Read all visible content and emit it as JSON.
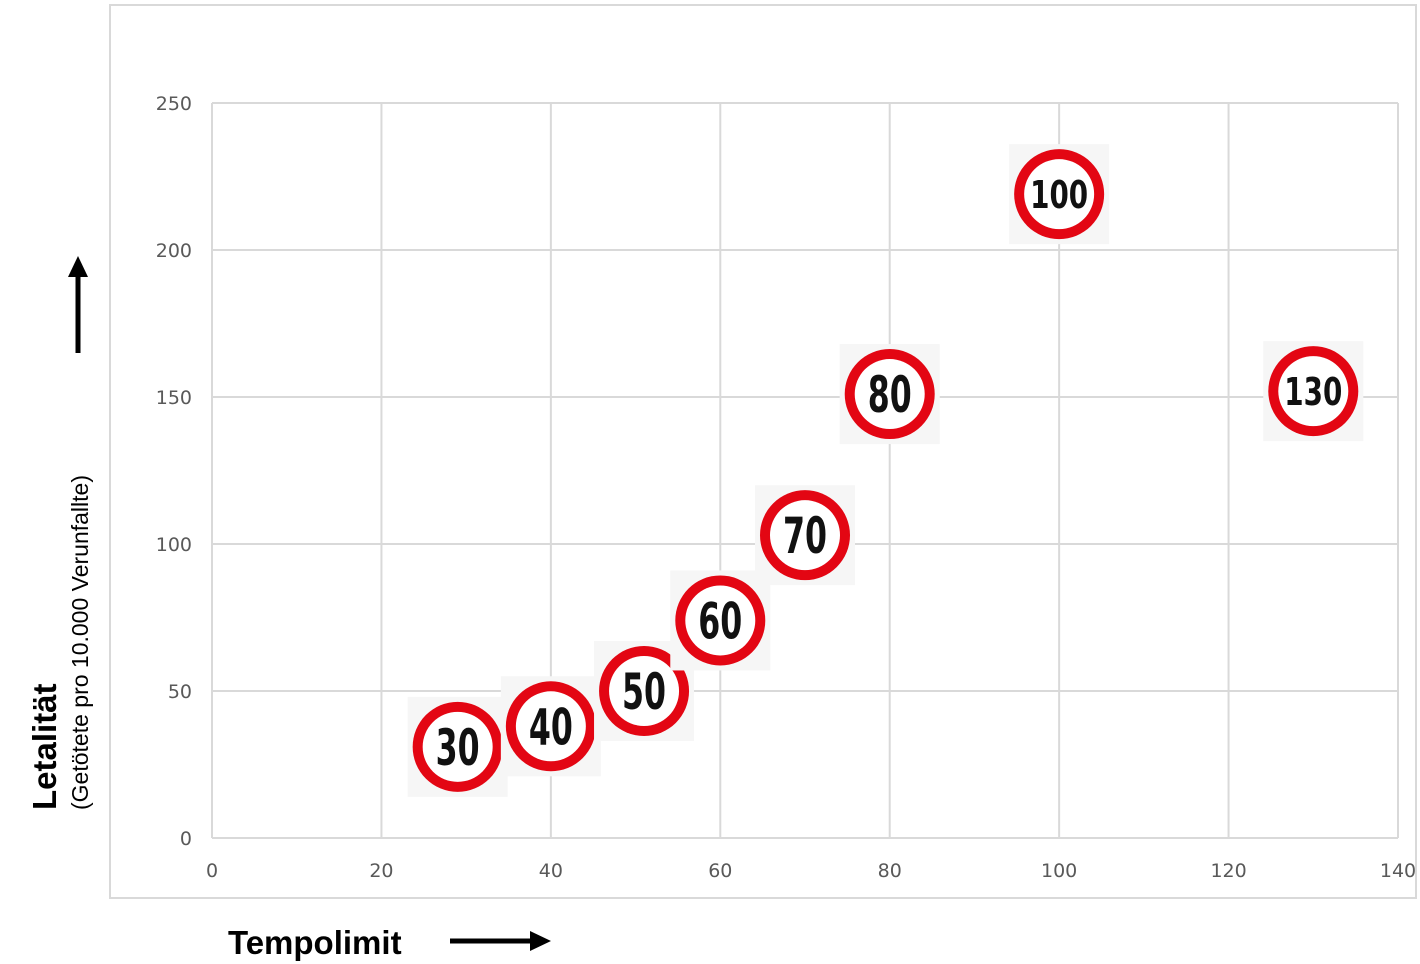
{
  "chart_data": {
    "type": "scatter",
    "title": "",
    "xlabel": "Tempolimit",
    "ylabel": "Letalität",
    "ylabel_sub": "(Getötete pro 10.000 Verunfallte)",
    "xlim": [
      0,
      140
    ],
    "ylim": [
      0,
      250
    ],
    "x_ticks": [
      0,
      20,
      40,
      60,
      80,
      100,
      120,
      140
    ],
    "y_ticks": [
      0,
      50,
      100,
      150,
      200,
      250
    ],
    "grid": true,
    "legend": "none",
    "marker": "speed-limit-sign",
    "points": [
      {
        "x": 29,
        "y": 31,
        "label": "30"
      },
      {
        "x": 40,
        "y": 38,
        "label": "40"
      },
      {
        "x": 51,
        "y": 50,
        "label": "50"
      },
      {
        "x": 60,
        "y": 74,
        "label": "60"
      },
      {
        "x": 70,
        "y": 103,
        "label": "70"
      },
      {
        "x": 80,
        "y": 151,
        "label": "80"
      },
      {
        "x": 100,
        "y": 219,
        "label": "100"
      },
      {
        "x": 130,
        "y": 152,
        "label": "130"
      }
    ],
    "colors": {
      "sign_ring": "#e30613",
      "grid": "#d9d9d9",
      "frame": "#d9d9d9"
    }
  }
}
